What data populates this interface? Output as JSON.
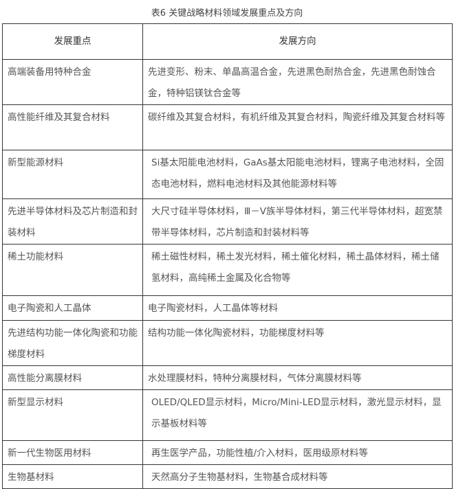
{
  "title": "表6 关键战略材料领域发展重点及方向",
  "headers": [
    "发展重点",
    "发展方向"
  ],
  "rows": [
    {
      "focus": "高端装备用特种合金",
      "direction": "先进变形、粉末、单晶高温合金，先进黑色耐热合金，先进黑色耐蚀合金，特种铝镁钛合金等"
    },
    {
      "focus": "高性能纤维及其复合材料",
      "direction": "碳纤维及其复合材料，有机纤维及其复合材料，陶瓷纤维及其复合材料等"
    },
    {
      "focus": "新型能源材料",
      "direction": "Si基太阳能电池材料，GaAs基太阳能电池材料，锂离子电池材料，全固态电池材料，燃料电池材料及其他能源材料等"
    },
    {
      "focus": "先进半导体材料及芯片制造和封装材料",
      "direction": "大尺寸硅半导体材料，Ⅲ－Ⅴ族半导体材料，第三代半导体材料，超宽禁带半导体材料，芯片制造和封装材料等"
    },
    {
      "focus": "稀土功能材料",
      "direction": "稀土磁性材料，稀土发光材料，稀土催化材料，稀土晶体材料，稀土储氢材料，高纯稀土金属及化合物等"
    },
    {
      "focus": "电子陶瓷和人工晶体",
      "direction": "电子陶瓷材料，人工晶体等材料"
    },
    {
      "focus": "先进结构功能一体化陶瓷和功能梯度材料",
      "direction": "结构功能一体化陶瓷材料，功能梯度材料等"
    },
    {
      "focus": "高性能分离膜材料",
      "direction": "水处理膜材料，特种分离膜材料，气体分离膜材料等"
    },
    {
      "focus": "新型显示材料",
      "direction": "OLED/QLED显示材料，Micro/Mini-LED显示材料，激光显示材料，显示基板材料等"
    },
    {
      "focus": "新一代生物医用材料",
      "direction": "再生医学产品，功能性植/介入材料，医用级原材料等"
    },
    {
      "focus": "生物基材料",
      "direction": "天然高分子生物基材料，生物基合成材料等"
    }
  ]
}
